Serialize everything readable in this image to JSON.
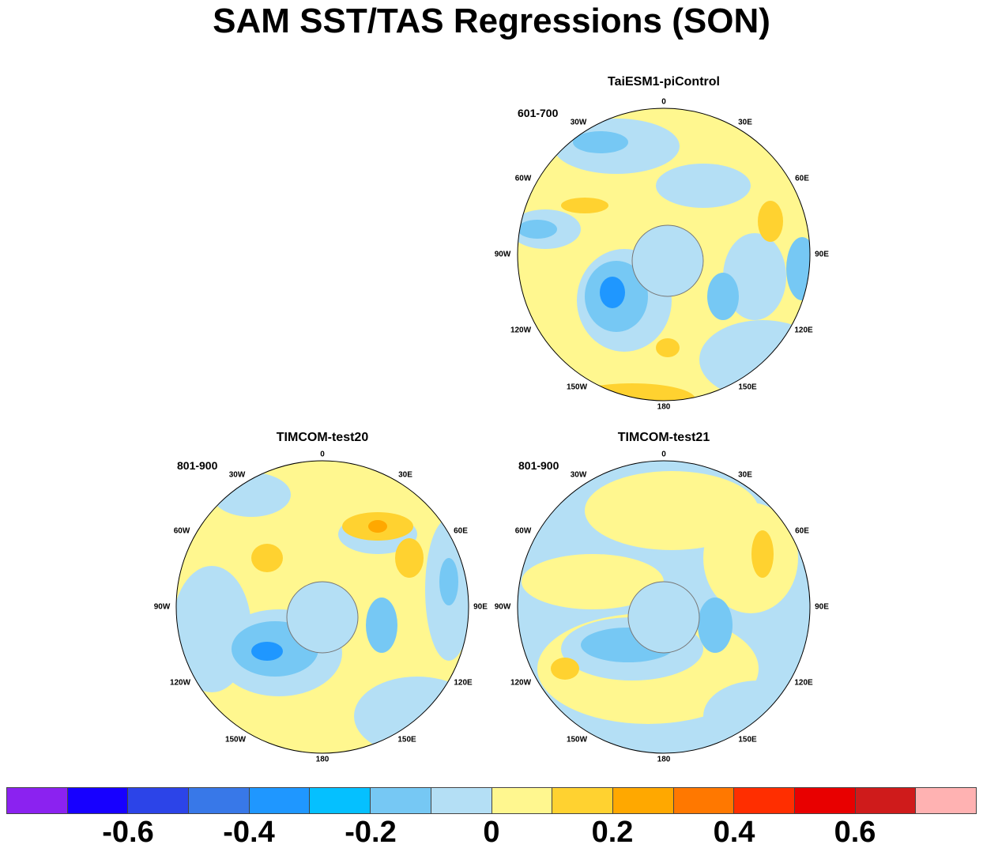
{
  "title": "SAM SST/TAS Regressions (SON)",
  "panels": [
    {
      "title": "TaiESM1-piControl",
      "period": "601-700",
      "lon_labels": [
        "0",
        "30E",
        "60E",
        "90E",
        "120E",
        "150E",
        "180",
        "150W",
        "120W",
        "90W",
        "60W",
        "30W"
      ]
    },
    {
      "title": "TIMCOM-test20",
      "period": "801-900",
      "lon_labels": [
        "0",
        "30E",
        "60E",
        "90E",
        "120E",
        "150E",
        "180",
        "150W",
        "120W",
        "90W",
        "60W",
        "30W"
      ]
    },
    {
      "title": "TIMCOM-test21",
      "period": "801-900",
      "lon_labels": [
        "0",
        "30E",
        "60E",
        "90E",
        "120E",
        "150E",
        "180",
        "150W",
        "120W",
        "90W",
        "60W",
        "30W"
      ]
    }
  ],
  "colorbar": {
    "colors": [
      "#8b22f0",
      "#1700ff",
      "#2c44e8",
      "#3878e8",
      "#1f97ff",
      "#05c0ff",
      "#76c8f4",
      "#b4dff5",
      "#fff78f",
      "#ffd230",
      "#ffa800",
      "#ff7800",
      "#ff2e00",
      "#e80000",
      "#cf1b1b",
      "#ffb2b2"
    ],
    "labels": [
      "-0.6",
      "-0.4",
      "-0.2",
      "0",
      "0.2",
      "0.4",
      "0.6"
    ]
  }
}
